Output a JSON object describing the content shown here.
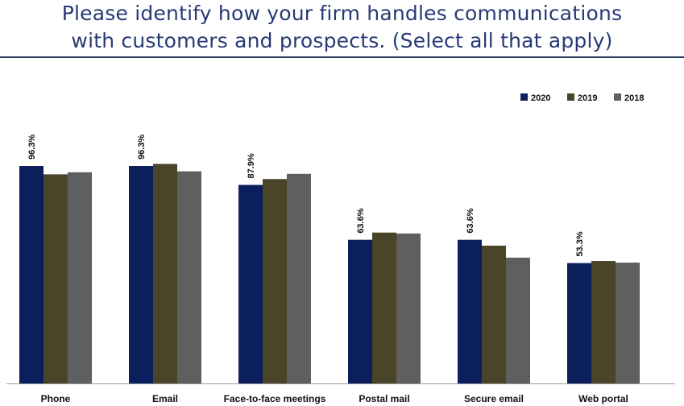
{
  "header": {
    "title_line1": "Please identify how your firm handles communications",
    "title_line2": "with customers and prospects. (Select all that apply)"
  },
  "chart_data": {
    "type": "bar",
    "title": "Please identify how your firm handles communications with customers and prospects. (Select all that apply)",
    "categories": [
      "Phone",
      "Email",
      "Face-to-face meetings",
      "Postal mail",
      "Secure email",
      "Web portal"
    ],
    "series": [
      {
        "name": "2020",
        "color": "#0b1f5c",
        "values": [
          96.3,
          96.3,
          87.9,
          63.6,
          63.6,
          53.3
        ]
      },
      {
        "name": "2019",
        "color": "#4a4429",
        "values": [
          92.6,
          97.2,
          90.5,
          66.8,
          61.0,
          54.2
        ]
      },
      {
        "name": "2018",
        "color": "#5f5f5f",
        "values": [
          93.5,
          93.9,
          92.8,
          66.4,
          55.7,
          53.5
        ]
      }
    ],
    "data_labels": [
      "96.3%",
      "96.3%",
      "87.9%",
      "63.6%",
      "63.6%",
      "53.3%"
    ],
    "ylim": [
      0,
      100
    ],
    "xlabel": "",
    "ylabel": "",
    "grid": false,
    "legend_position": "top-right"
  }
}
